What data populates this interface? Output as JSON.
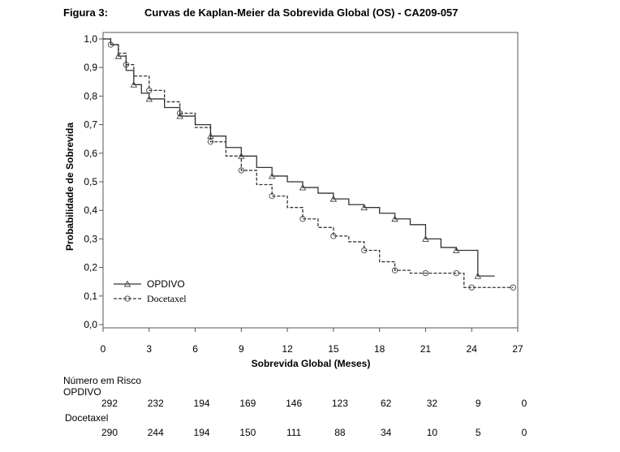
{
  "figure": {
    "number": "Figura 3:",
    "title": "Curvas de Kaplan-Meier da Sobrevida Global (OS) - CA209-057"
  },
  "chart_data": {
    "type": "line",
    "xlabel": "Sobrevida Global (Meses)",
    "ylabel": "Probabilidade de Sobrevida",
    "xlim": [
      0,
      27
    ],
    "ylim": [
      0.0,
      1.0
    ],
    "x_ticks": [
      0,
      3,
      6,
      9,
      12,
      15,
      18,
      21,
      24,
      27
    ],
    "y_ticks": [
      "0,0",
      "0,1",
      "0,2",
      "0,3",
      "0,4",
      "0,5",
      "0,6",
      "0,7",
      "0,8",
      "0,9",
      "1,0"
    ],
    "legend_position": "bottom-left",
    "series": [
      {
        "name": "OPDIVO",
        "style": "solid",
        "marker": "triangle",
        "color": "#333333",
        "x": [
          0,
          0.5,
          1,
          1.5,
          2,
          2.5,
          3,
          4,
          5,
          6,
          7,
          8,
          9,
          10,
          11,
          12,
          13,
          14,
          15,
          16,
          17,
          18,
          19,
          20,
          21,
          22,
          23,
          24,
          24.4,
          25.5
        ],
        "y": [
          1.0,
          0.98,
          0.94,
          0.89,
          0.84,
          0.81,
          0.79,
          0.76,
          0.73,
          0.7,
          0.66,
          0.62,
          0.59,
          0.55,
          0.52,
          0.5,
          0.48,
          0.46,
          0.44,
          0.42,
          0.41,
          0.39,
          0.37,
          0.35,
          0.3,
          0.27,
          0.26,
          0.26,
          0.17,
          0.17
        ]
      },
      {
        "name": "Docetaxel",
        "style": "dashed",
        "marker": "circle",
        "color": "#333333",
        "x": [
          0,
          0.5,
          1,
          1.5,
          2,
          3,
          4,
          5,
          6,
          7,
          8,
          9,
          10,
          11,
          12,
          13,
          14,
          15,
          16,
          17,
          18,
          19,
          20,
          21,
          22,
          23,
          23.5,
          24,
          25,
          26.7
        ],
        "y": [
          1.0,
          0.98,
          0.95,
          0.91,
          0.87,
          0.82,
          0.78,
          0.74,
          0.69,
          0.64,
          0.59,
          0.54,
          0.49,
          0.45,
          0.41,
          0.37,
          0.34,
          0.31,
          0.29,
          0.26,
          0.22,
          0.19,
          0.18,
          0.18,
          0.18,
          0.18,
          0.13,
          0.13,
          0.13,
          0.13
        ]
      }
    ]
  },
  "risk_table": {
    "title": "Número em Risco",
    "arms": [
      {
        "name": "OPDIVO",
        "values": [
          "292",
          "232",
          "194",
          "169",
          "146",
          "123",
          "62",
          "32",
          "9",
          "0"
        ]
      },
      {
        "name": "Docetaxel",
        "values": [
          "290",
          "244",
          "194",
          "150",
          "111",
          "88",
          "34",
          "10",
          "5",
          "0"
        ]
      }
    ]
  }
}
